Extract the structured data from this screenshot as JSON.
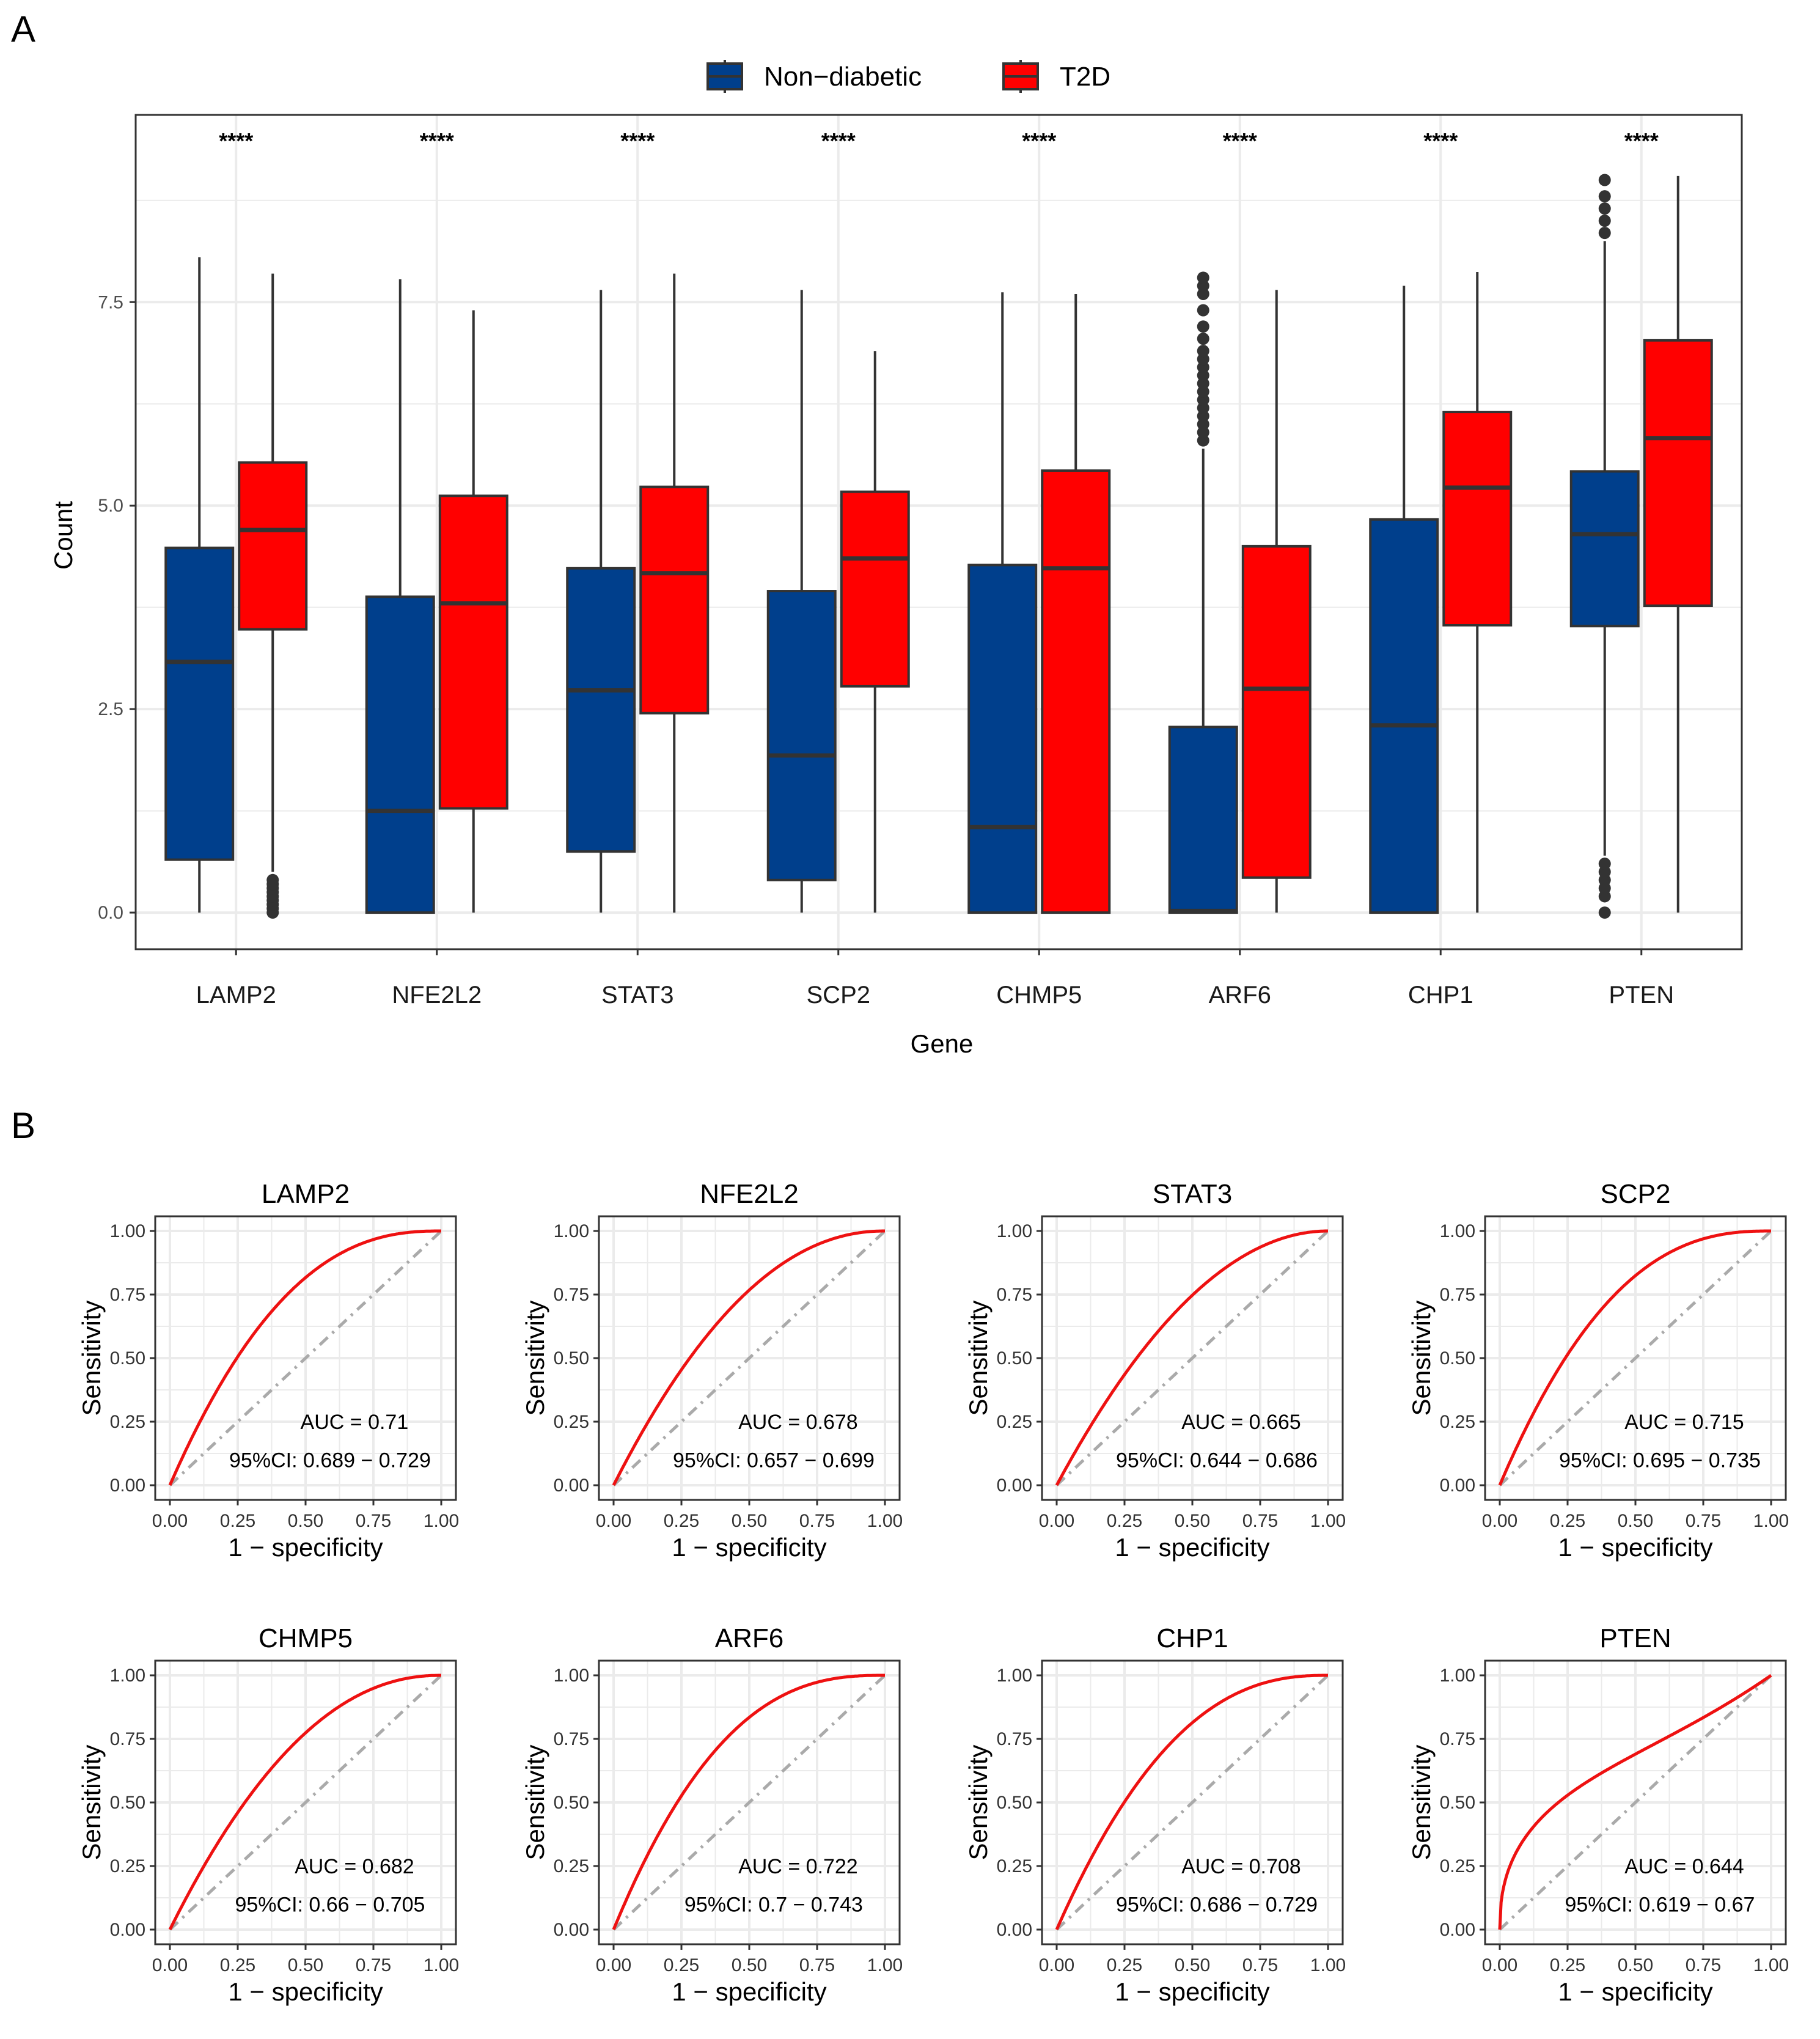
{
  "panel_labels": [
    "A",
    "B"
  ],
  "colors": {
    "non_diabetic": "#003F8C",
    "t2d": "#FF0000",
    "box_stroke": "#333333",
    "grid": "#EBEBEB",
    "roc_curve": "#EE1111",
    "diagonal": "#AAAAAA"
  },
  "chart_data": [
    {
      "type": "box",
      "title": "",
      "xlabel": "Gene",
      "ylabel": "Count",
      "ylim": [
        -0.45,
        9.8
      ],
      "yticks": [
        0.0,
        2.5,
        5.0,
        7.5
      ],
      "ytick_labels": [
        "0.0",
        "2.5",
        "5.0",
        "7.5"
      ],
      "legend": {
        "position": "top",
        "entries": [
          "Non−diabetic",
          "T2D"
        ]
      },
      "categories": [
        "LAMP2",
        "NFE2L2",
        "STAT3",
        "SCP2",
        "CHMP5",
        "ARF6",
        "CHP1",
        "PTEN"
      ],
      "significance": [
        "****",
        "****",
        "****",
        "****",
        "****",
        "****",
        "****",
        "****"
      ],
      "series": [
        {
          "name": "Non−diabetic",
          "boxes": [
            {
              "whisker_low": 0.0,
              "q1": 0.65,
              "median": 3.08,
              "q3": 4.48,
              "whisker_high": 8.05,
              "outliers": []
            },
            {
              "whisker_low": 0.0,
              "q1": 0.0,
              "median": 1.25,
              "q3": 3.88,
              "whisker_high": 7.78,
              "outliers": []
            },
            {
              "whisker_low": 0.0,
              "q1": 0.75,
              "median": 2.73,
              "q3": 4.23,
              "whisker_high": 7.65,
              "outliers": []
            },
            {
              "whisker_low": 0.0,
              "q1": 0.4,
              "median": 1.93,
              "q3": 3.95,
              "whisker_high": 7.65,
              "outliers": []
            },
            {
              "whisker_low": 0.0,
              "q1": 0.0,
              "median": 1.05,
              "q3": 4.27,
              "whisker_high": 7.62,
              "outliers": []
            },
            {
              "whisker_low": 0.0,
              "q1": 0.0,
              "median": 0.02,
              "q3": 2.28,
              "whisker_high": 5.7,
              "outliers": [
                5.8,
                5.9,
                6.0,
                6.1,
                6.2,
                6.3,
                6.4,
                6.5,
                6.6,
                6.7,
                6.8,
                6.9,
                7.05,
                7.2,
                7.4,
                7.6,
                7.7,
                7.8
              ]
            },
            {
              "whisker_low": 0.0,
              "q1": 0.0,
              "median": 2.3,
              "q3": 4.83,
              "whisker_high": 7.7,
              "outliers": []
            },
            {
              "whisker_low": 0.7,
              "q1": 3.52,
              "median": 4.65,
              "q3": 5.42,
              "whisker_high": 8.25,
              "outliers": [
                0.0,
                0.2,
                0.3,
                0.4,
                0.5,
                0.6,
                8.35,
                8.5,
                8.65,
                8.8,
                9.0
              ]
            }
          ]
        },
        {
          "name": "T2D",
          "boxes": [
            {
              "whisker_low": 0.5,
              "q1": 3.48,
              "median": 4.7,
              "q3": 5.53,
              "whisker_high": 7.85,
              "outliers": [
                0.0,
                0.05,
                0.1,
                0.15,
                0.2,
                0.25,
                0.3,
                0.35,
                0.4
              ]
            },
            {
              "whisker_low": 0.0,
              "q1": 1.28,
              "median": 3.8,
              "q3": 5.12,
              "whisker_high": 7.4,
              "outliers": []
            },
            {
              "whisker_low": 0.0,
              "q1": 2.45,
              "median": 4.17,
              "q3": 5.23,
              "whisker_high": 7.85,
              "outliers": []
            },
            {
              "whisker_low": 0.0,
              "q1": 2.78,
              "median": 4.35,
              "q3": 5.17,
              "whisker_high": 6.9,
              "outliers": []
            },
            {
              "whisker_low": 0.0,
              "q1": 0.0,
              "median": 4.23,
              "q3": 5.43,
              "whisker_high": 7.6,
              "outliers": []
            },
            {
              "whisker_low": 0.0,
              "q1": 0.43,
              "median": 2.75,
              "q3": 4.5,
              "whisker_high": 7.65,
              "outliers": []
            },
            {
              "whisker_low": 0.0,
              "q1": 3.53,
              "median": 5.22,
              "q3": 6.15,
              "whisker_high": 7.87,
              "outliers": []
            },
            {
              "whisker_low": 0.0,
              "q1": 3.77,
              "median": 5.83,
              "q3": 7.03,
              "whisker_high": 9.05,
              "outliers": []
            }
          ]
        }
      ]
    },
    {
      "type": "line",
      "subtype": "roc",
      "xlabel": "1 − specificity",
      "ylabel": "Sensitivity",
      "xlim": [
        0,
        1
      ],
      "ylim": [
        0,
        1
      ],
      "ticks": [
        0.0,
        0.25,
        0.5,
        0.75,
        1.0
      ],
      "tick_labels": [
        "0.00",
        "0.25",
        "0.50",
        "0.75",
        "1.00"
      ],
      "panels": [
        {
          "title": "LAMP2",
          "auc_label": "AUC =  0.71",
          "ci_label": "95%CI:  0.689 − 0.729",
          "auc": 0.71
        },
        {
          "title": "NFE2L2",
          "auc_label": "AUC =  0.678",
          "ci_label": "95%CI:  0.657 − 0.699",
          "auc": 0.678
        },
        {
          "title": "STAT3",
          "auc_label": "AUC =  0.665",
          "ci_label": "95%CI:  0.644 − 0.686",
          "auc": 0.665
        },
        {
          "title": "SCP2",
          "auc_label": "AUC =  0.715",
          "ci_label": "95%CI:  0.695 − 0.735",
          "auc": 0.715
        },
        {
          "title": "CHMP5",
          "auc_label": "AUC =  0.682",
          "ci_label": "95%CI:  0.66 − 0.705",
          "auc": 0.682
        },
        {
          "title": "ARF6",
          "auc_label": "AUC =  0.722",
          "ci_label": "95%CI:  0.7 − 0.743",
          "auc": 0.722
        },
        {
          "title": "CHP1",
          "auc_label": "AUC =  0.708",
          "ci_label": "95%CI:  0.686 − 0.729",
          "auc": 0.708
        },
        {
          "title": "PTEN",
          "auc_label": "AUC =  0.644",
          "ci_label": "95%CI:  0.619 − 0.67",
          "auc": 0.644,
          "shape": "s-curve"
        }
      ]
    }
  ]
}
